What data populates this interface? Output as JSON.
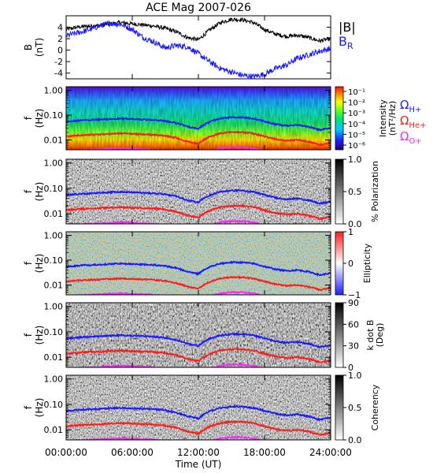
{
  "title": "ACE Mag 2007-026",
  "x_axis": {
    "label": "Time (UT)",
    "ticks": [
      "00:00:00",
      "06:00:00",
      "12:00:00",
      "18:00:00",
      "24:00:00"
    ],
    "range_hours": [
      0,
      24
    ]
  },
  "colors": {
    "B_total": "#000000",
    "B_R": "#1a1aff",
    "omega_H": "#1a1aff",
    "omega_He": "#ff1a1a",
    "omega_O": "#ff22ff"
  },
  "chart_data": [
    {
      "type": "line",
      "panel": "magnetic-field",
      "ylabel": "B",
      "yunit": "(nT)",
      "ylim": [
        -5,
        6
      ],
      "yticks": [
        "4",
        "2",
        "0",
        "-2",
        "-4"
      ],
      "x_hours": [
        0,
        1,
        2,
        3,
        4,
        5,
        6,
        7,
        8,
        9,
        10,
        11,
        12,
        13,
        14,
        15,
        16,
        17,
        18,
        19,
        20,
        21,
        22,
        23,
        24
      ],
      "series": [
        {
          "name": "|B|",
          "values": [
            3.6,
            4.0,
            4.2,
            4.3,
            4.6,
            4.8,
            4.6,
            4.4,
            4.2,
            3.8,
            3.2,
            2.2,
            1.8,
            3.5,
            4.8,
            5.4,
            5.3,
            4.8,
            3.6,
            2.8,
            2.4,
            2.6,
            2.2,
            1.6,
            2.0
          ]
        },
        {
          "name": "B_R",
          "values": [
            2.5,
            3.0,
            3.5,
            4.2,
            4.7,
            4.5,
            3.6,
            2.2,
            1.4,
            0.4,
            0.8,
            0.6,
            -0.6,
            -2.0,
            -3.2,
            -3.8,
            -4.4,
            -4.6,
            -4.2,
            -3.2,
            -2.6,
            -1.4,
            -0.8,
            -0.2,
            0.3
          ]
        }
      ]
    },
    {
      "type": "heatmap",
      "panel": "intensity",
      "ylabel": "f",
      "yunit": "(Hz)",
      "colorbar_label": "Intensity",
      "colorbar_unit": "(nT²/Hz)",
      "colorbar_ticks": [
        "10⁻¹",
        "10⁻²",
        "10⁻³",
        "10⁻⁴",
        "10⁻⁵",
        "10⁻⁶"
      ]
    },
    {
      "type": "heatmap",
      "panel": "polarization",
      "ylabel": "f",
      "yunit": "(Hz)",
      "colorbar_label": "% Polarization",
      "colorbar_ticks": [
        "1.0",
        "0.5",
        "0.0"
      ]
    },
    {
      "type": "heatmap",
      "panel": "ellipticity",
      "ylabel": "f",
      "yunit": "(Hz)",
      "colorbar_label": "Ellipticity",
      "colorbar_ticks": [
        "1",
        "0",
        "−1"
      ]
    },
    {
      "type": "heatmap",
      "panel": "k-dot-b",
      "ylabel": "f",
      "yunit": "(Hz)",
      "colorbar_label": "k dot B",
      "colorbar_unit": "(Deg)",
      "colorbar_ticks": [
        "90",
        "60",
        "30",
        "0"
      ]
    },
    {
      "type": "heatmap",
      "panel": "coherency",
      "ylabel": "f",
      "yunit": "(Hz)",
      "colorbar_label": "Coherency",
      "colorbar_ticks": [
        "1.0",
        "0.5",
        "0.0"
      ]
    }
  ],
  "frequency_axis": {
    "scale": "log",
    "ticks": [
      "1.00",
      "0.10",
      "0.01"
    ],
    "ylim": [
      0.004,
      1.4
    ]
  },
  "gyrofrequency_lines": {
    "x_hours": [
      0,
      1,
      2,
      3,
      4,
      5,
      6,
      7,
      8,
      9,
      10,
      11,
      12,
      13,
      14,
      15,
      16,
      17,
      18,
      19,
      20,
      21,
      22,
      23,
      24
    ],
    "omega_H_hz": [
      0.055,
      0.06,
      0.064,
      0.066,
      0.07,
      0.073,
      0.07,
      0.067,
      0.064,
      0.058,
      0.048,
      0.034,
      0.028,
      0.053,
      0.073,
      0.082,
      0.081,
      0.073,
      0.055,
      0.043,
      0.037,
      0.04,
      0.034,
      0.025,
      0.03
    ]
  },
  "legend": [
    {
      "symbol": "|B|",
      "sub": ""
    },
    {
      "symbol": "B",
      "sub": "R"
    },
    {
      "symbol": "Ω",
      "sub": "H+"
    },
    {
      "symbol": "Ω",
      "sub": "He+"
    },
    {
      "symbol": "Ω",
      "sub": "O+"
    }
  ]
}
